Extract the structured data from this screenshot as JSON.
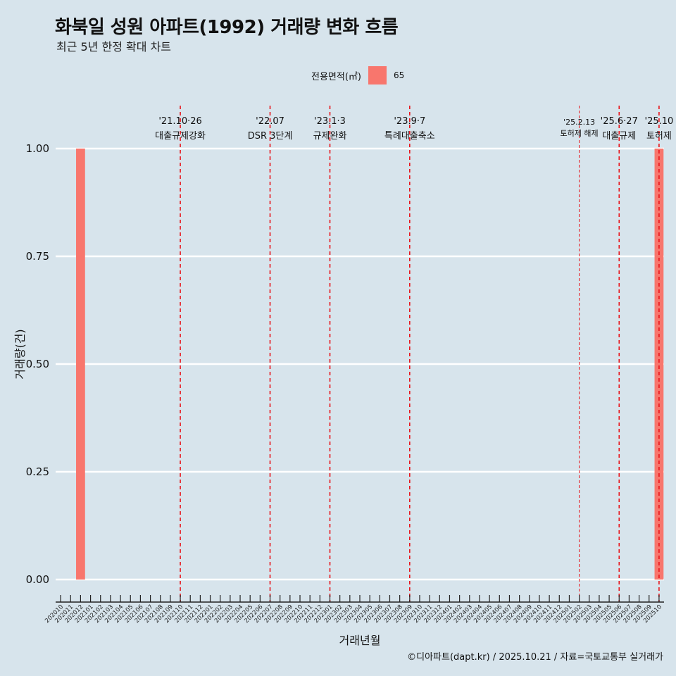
{
  "chart_data": {
    "type": "bar",
    "title": "화북일 성원 아파트(1992) 거래량 변화 흐름",
    "subtitle": "최근 5년 한정 확대 차트",
    "xlabel": "거래년월",
    "ylabel": "거래량(건)",
    "ylim": [
      0,
      1.0
    ],
    "yticks": [
      "0.00",
      "0.25",
      "0.50",
      "0.75",
      "1.00"
    ],
    "legend": {
      "title": "전용면적(㎡)",
      "entries": [
        "65"
      ],
      "position": "top"
    },
    "categories": [
      "202010",
      "202011",
      "202012",
      "202101",
      "202102",
      "202103",
      "202104",
      "202105",
      "202106",
      "202107",
      "202108",
      "202109",
      "202110",
      "202111",
      "202112",
      "202201",
      "202202",
      "202203",
      "202204",
      "202205",
      "202206",
      "202207",
      "202208",
      "202209",
      "202210",
      "202211",
      "202212",
      "202301",
      "202302",
      "202303",
      "202304",
      "202305",
      "202306",
      "202307",
      "202308",
      "202309",
      "202310",
      "202311",
      "202312",
      "202401",
      "202402",
      "202403",
      "202404",
      "202405",
      "202406",
      "202407",
      "202408",
      "202409",
      "202410",
      "202411",
      "202412",
      "202501",
      "202502",
      "202503",
      "202504",
      "202505",
      "202506",
      "202507",
      "202508",
      "202509",
      "202510"
    ],
    "series": [
      {
        "name": "65",
        "color": "#f8766d",
        "points": [
          {
            "x": "202012",
            "y": 1
          },
          {
            "x": "202510",
            "y": 1
          }
        ]
      }
    ],
    "events": [
      {
        "x": "202110",
        "date": "'21.10·26",
        "label": "대출규제강화",
        "style": "major"
      },
      {
        "x": "202207",
        "date": "'22.07",
        "label": "DSR 3단계",
        "style": "major"
      },
      {
        "x": "202301",
        "date": "'23.1·3",
        "label": "규제완화",
        "style": "major"
      },
      {
        "x": "202309",
        "date": "'23.9·7",
        "label": "특례대출축소",
        "style": "major"
      },
      {
        "x": "202502",
        "date": "'25.2.13",
        "label": "토허제 해제",
        "style": "minor"
      },
      {
        "x": "202506",
        "date": "'25.6·27",
        "label": "대출규제",
        "style": "major"
      },
      {
        "x": "202510",
        "date": "'25.10",
        "label": "토허제",
        "style": "major"
      }
    ],
    "caption": "©디아파트(dapt.kr) / 2025.10.21 / 자료=국토교통부 실거래가"
  }
}
